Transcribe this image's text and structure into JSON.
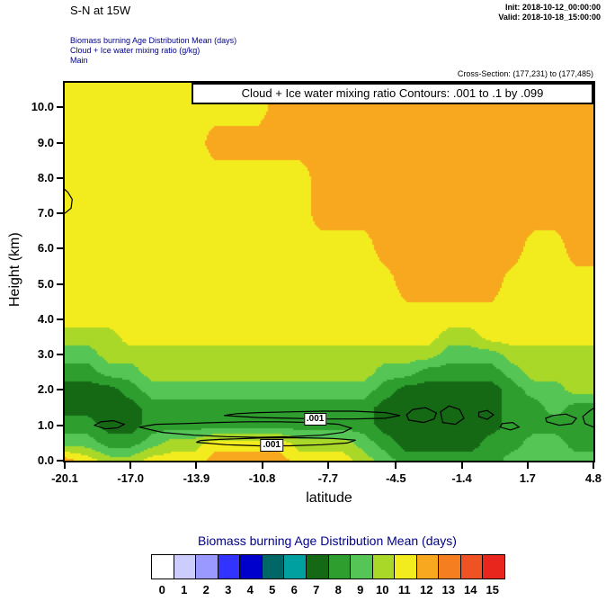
{
  "header": {
    "title": "S-N at 15W",
    "init": "Init: 2018-10-12_00:00:00",
    "valid": "Valid: 2018-10-18_15:00:00",
    "subtitle_lines": [
      "Biomass burning Age Distribution Mean   (days)",
      "Cloud + Ice water mixing ratio   (g/kg)",
      "Main"
    ],
    "subtitle_color": "#00008b",
    "cross_section": "Cross-Section: (177,231) to (177,485)"
  },
  "chart_data": {
    "type": "heatmap",
    "contour_note": "Cloud + Ice water mixing ratio Contours: .001 to .1 by .099",
    "xlabel": "latitude",
    "ylabel": "Height (km)",
    "xlim": [
      -20.1,
      4.8
    ],
    "ylim": [
      0,
      10.7
    ],
    "x_ticks": {
      "values": [
        -20.1,
        -17.0,
        -13.9,
        -10.8,
        -7.7,
        -4.5,
        -1.4,
        1.7,
        4.8
      ],
      "labels": [
        "-20.1",
        "-17.0",
        "-13.9",
        "-10.8",
        "-7.7",
        "-4.5",
        "-1.4",
        "1.7",
        "4.8"
      ]
    },
    "y_ticks": {
      "values": [
        0,
        1,
        2,
        3,
        4,
        5,
        6,
        7,
        8,
        9,
        10
      ],
      "labels": [
        "0.0",
        "1.0",
        "2.0",
        "3.0",
        "4.0",
        "5.0",
        "6.0",
        "7.0",
        "8.0",
        "9.0",
        "10.0"
      ]
    },
    "colorbar": {
      "title": "Biomass burning Age Distribution Mean  (days)",
      "title_color": "#00008b",
      "tick_labels": [
        "0",
        "1",
        "2",
        "3",
        "4",
        "5",
        "6",
        "7",
        "8",
        "9",
        "10",
        "11",
        "12",
        "13",
        "14",
        "15"
      ],
      "colors": [
        "#ffffff",
        "#ccccff",
        "#9999ff",
        "#3333ff",
        "#0000cc",
        "#006666",
        "#00a0a0",
        "#156915",
        "#2e9e2e",
        "#55c555",
        "#aad828",
        "#f2ec1f",
        "#f8a81e",
        "#f57e20",
        "#ef5324",
        "#e8261d"
      ]
    },
    "grid": {
      "x": [
        -20.1,
        -19,
        -18,
        -17,
        -16,
        -15,
        -14,
        -13,
        -12,
        -11,
        -10,
        -9,
        -8,
        -7,
        -6,
        -5,
        -4,
        -3,
        -2,
        -1,
        0,
        1,
        2,
        3,
        4,
        4.8
      ],
      "y": [
        0,
        0.5,
        1,
        1.5,
        2,
        2.5,
        3,
        3.5,
        4,
        5,
        6,
        7,
        8,
        9,
        10,
        10.7
      ],
      "values": [
        [
          12,
          11,
          10,
          10,
          11,
          11,
          11,
          12,
          12,
          12,
          12,
          11,
          11,
          11,
          10,
          9,
          8,
          8,
          8,
          8,
          8,
          9,
          9,
          9,
          9,
          9
        ],
        [
          9,
          9,
          8,
          8,
          9,
          10,
          10,
          11,
          11,
          11,
          11,
          10,
          10,
          10,
          9,
          8,
          7,
          7,
          7,
          7,
          8,
          8,
          9,
          9,
          8,
          8
        ],
        [
          8,
          8,
          7,
          7,
          8,
          8,
          8,
          8,
          8,
          8,
          8,
          8,
          8,
          8,
          8,
          7,
          7,
          7,
          7,
          7,
          7,
          8,
          8,
          8,
          8,
          8
        ],
        [
          7,
          7,
          7,
          7,
          8,
          8,
          8,
          8,
          8,
          8,
          8,
          8,
          8,
          8,
          8,
          7,
          7,
          7,
          7,
          7,
          7,
          8,
          8,
          9,
          8,
          8
        ],
        [
          7,
          7,
          7,
          8,
          9,
          9,
          9,
          9,
          9,
          9,
          9,
          9,
          9,
          9,
          9,
          8,
          7,
          7,
          7,
          7,
          7,
          8,
          9,
          9,
          10,
          10
        ],
        [
          8,
          8,
          9,
          9,
          10,
          10,
          10,
          10,
          10,
          10,
          10,
          10,
          10,
          10,
          10,
          9,
          9,
          8,
          8,
          8,
          8,
          9,
          10,
          10,
          10,
          10
        ],
        [
          9,
          9,
          10,
          10,
          10,
          10,
          10,
          10,
          10,
          10,
          10,
          10,
          10,
          10,
          10,
          10,
          10,
          10,
          9,
          9,
          9,
          10,
          10,
          10,
          10,
          10
        ],
        [
          10,
          10,
          10,
          11,
          11,
          11,
          11,
          11,
          11,
          11,
          11,
          11,
          11,
          11,
          11,
          11,
          11,
          11,
          10,
          10,
          11,
          11,
          11,
          11,
          11,
          11
        ],
        [
          11,
          11,
          11,
          11,
          11,
          11,
          11,
          11,
          11,
          11,
          11,
          11,
          11,
          11,
          11,
          11,
          11,
          11,
          11,
          11,
          11,
          11,
          11,
          11,
          11,
          11
        ],
        [
          11,
          11,
          11,
          11,
          11,
          11,
          11,
          11,
          11,
          11,
          11,
          11,
          11,
          11,
          11,
          11,
          12,
          12,
          12,
          12,
          12,
          11,
          11,
          11,
          11,
          11
        ],
        [
          11,
          11,
          11,
          11,
          11,
          11,
          11,
          11,
          11,
          11,
          11,
          11,
          11,
          11,
          11,
          12,
          12,
          12,
          12,
          12,
          12,
          12,
          11,
          11,
          12,
          12
        ],
        [
          11,
          11,
          11,
          11,
          11,
          11,
          11,
          11,
          11,
          11,
          11,
          11,
          12,
          12,
          12,
          12,
          12,
          12,
          12,
          12,
          12,
          12,
          12,
          12,
          12,
          12
        ],
        [
          11,
          11,
          11,
          11,
          11,
          11,
          11,
          11,
          11,
          11,
          11,
          11,
          12,
          12,
          12,
          12,
          12,
          12,
          12,
          12,
          12,
          12,
          12,
          12,
          12,
          12
        ],
        [
          11,
          11,
          11,
          11,
          11,
          11,
          11,
          12,
          12,
          12,
          12,
          12,
          12,
          12,
          12,
          12,
          12,
          12,
          12,
          12,
          12,
          12,
          12,
          12,
          12,
          12
        ],
        [
          11,
          11,
          11,
          11,
          11,
          11,
          11,
          11,
          11,
          11,
          12,
          12,
          12,
          12,
          12,
          12,
          12,
          12,
          12,
          12,
          12,
          12,
          12,
          12,
          12,
          12
        ],
        [
          11,
          11,
          11,
          11,
          11,
          11,
          11,
          11,
          11,
          12,
          12,
          12,
          12,
          12,
          12,
          12,
          12,
          12,
          12,
          12,
          12,
          12,
          12,
          12,
          12,
          12
        ]
      ]
    },
    "contours": {
      "level_label": ".001",
      "color": "#000000",
      "labels": [
        {
          "text": ".001",
          "x": -8.3,
          "y": 1.18
        },
        {
          "text": ".001",
          "x": -10.35,
          "y": 0.44
        }
      ],
      "lines": [
        {
          "closed": true,
          "pts": [
            [
              -18.7,
              1.0
            ],
            [
              -18.2,
              0.9
            ],
            [
              -17.6,
              0.93
            ],
            [
              -17.3,
              1.03
            ],
            [
              -17.8,
              1.13
            ],
            [
              -18.4,
              1.1
            ]
          ]
        },
        {
          "closed": true,
          "pts": [
            [
              -16.6,
              0.95
            ],
            [
              -15.5,
              0.8
            ],
            [
              -14,
              0.72
            ],
            [
              -12.5,
              0.68
            ],
            [
              -11,
              0.66
            ],
            [
              -9.5,
              0.68
            ],
            [
              -8,
              0.72
            ],
            [
              -7,
              0.8
            ],
            [
              -6.6,
              0.92
            ],
            [
              -7.2,
              1.03
            ],
            [
              -8.5,
              1.08
            ],
            [
              -10,
              1.1
            ],
            [
              -11.5,
              1.1
            ],
            [
              -13,
              1.08
            ],
            [
              -14.5,
              1.05
            ],
            [
              -15.8,
              1.03
            ]
          ]
        },
        {
          "closed": true,
          "pts": [
            [
              -13.9,
              0.52
            ],
            [
              -12.5,
              0.45
            ],
            [
              -11,
              0.42
            ],
            [
              -9.5,
              0.42
            ],
            [
              -8,
              0.45
            ],
            [
              -6.8,
              0.5
            ],
            [
              -6.4,
              0.58
            ],
            [
              -7.5,
              0.63
            ],
            [
              -9,
              0.65
            ],
            [
              -11,
              0.64
            ],
            [
              -12.8,
              0.6
            ],
            [
              -13.7,
              0.57
            ]
          ]
        },
        {
          "closed": true,
          "pts": [
            [
              -12.6,
              1.28
            ],
            [
              -11,
              1.22
            ],
            [
              -9.5,
              1.2
            ],
            [
              -8,
              1.18
            ],
            [
              -6.5,
              1.18
            ],
            [
              -5,
              1.2
            ],
            [
              -4.3,
              1.28
            ],
            [
              -5,
              1.36
            ],
            [
              -6.5,
              1.4
            ],
            [
              -8,
              1.4
            ],
            [
              -9.5,
              1.38
            ],
            [
              -11,
              1.36
            ],
            [
              -12,
              1.33
            ]
          ]
        },
        {
          "closed": true,
          "pts": [
            [
              -3.9,
              1.15
            ],
            [
              -3.2,
              1.08
            ],
            [
              -2.7,
              1.18
            ],
            [
              -2.6,
              1.35
            ],
            [
              -3.1,
              1.5
            ],
            [
              -3.7,
              1.45
            ],
            [
              -4.0,
              1.3
            ]
          ]
        },
        {
          "closed": true,
          "pts": [
            [
              -2.3,
              1.08
            ],
            [
              -1.7,
              1.03
            ],
            [
              -1.3,
              1.2
            ],
            [
              -1.5,
              1.45
            ],
            [
              -2.0,
              1.55
            ],
            [
              -2.4,
              1.38
            ]
          ]
        },
        {
          "closed": true,
          "pts": [
            [
              -0.6,
              1.25
            ],
            [
              -0.2,
              1.17
            ],
            [
              0.1,
              1.3
            ],
            [
              -0.2,
              1.42
            ],
            [
              -0.6,
              1.37
            ]
          ]
        },
        {
          "closed": true,
          "pts": [
            [
              0.4,
              0.95
            ],
            [
              0.9,
              0.87
            ],
            [
              1.3,
              0.95
            ],
            [
              1.0,
              1.08
            ],
            [
              0.5,
              1.05
            ]
          ]
        },
        {
          "closed": true,
          "pts": [
            [
              2.6,
              1.1
            ],
            [
              3.2,
              1.0
            ],
            [
              3.8,
              1.05
            ],
            [
              4.0,
              1.2
            ],
            [
              3.5,
              1.32
            ],
            [
              2.9,
              1.28
            ],
            [
              2.55,
              1.2
            ]
          ]
        },
        {
          "closed": false,
          "pts": [
            [
              4.8,
              0.95
            ],
            [
              4.4,
              1.05
            ],
            [
              4.3,
              1.25
            ],
            [
              4.6,
              1.4
            ],
            [
              4.8,
              1.48
            ]
          ]
        },
        {
          "closed": false,
          "pts": [
            [
              -20.1,
              7.0
            ],
            [
              -19.8,
              7.15
            ],
            [
              -19.75,
              7.4
            ],
            [
              -19.95,
              7.6
            ],
            [
              -20.1,
              7.68
            ]
          ]
        }
      ]
    }
  }
}
